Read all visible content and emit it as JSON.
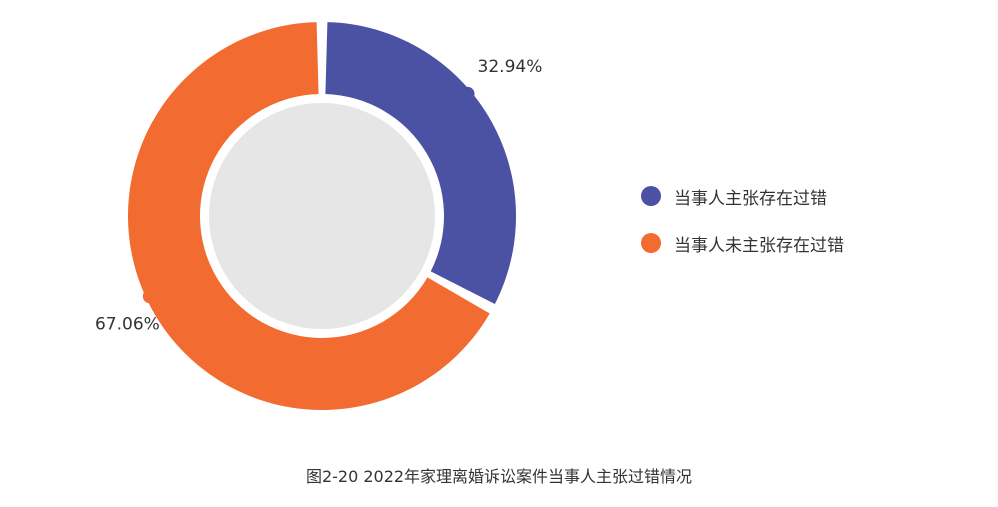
{
  "chart_data": {
    "type": "pie",
    "style": "donut",
    "categories": [
      "当事人主张存在过错",
      "当事人未主张存在过错"
    ],
    "values": [
      32.94,
      67.06
    ],
    "labels": [
      "32.94%",
      "67.06%"
    ],
    "colors": [
      "#4b51a3",
      "#f26b31"
    ],
    "center_color": "#e6e6e6",
    "legend_position": "right",
    "title": "图2-20  2022年家理离婚诉讼案件当事人主张过错情况"
  }
}
